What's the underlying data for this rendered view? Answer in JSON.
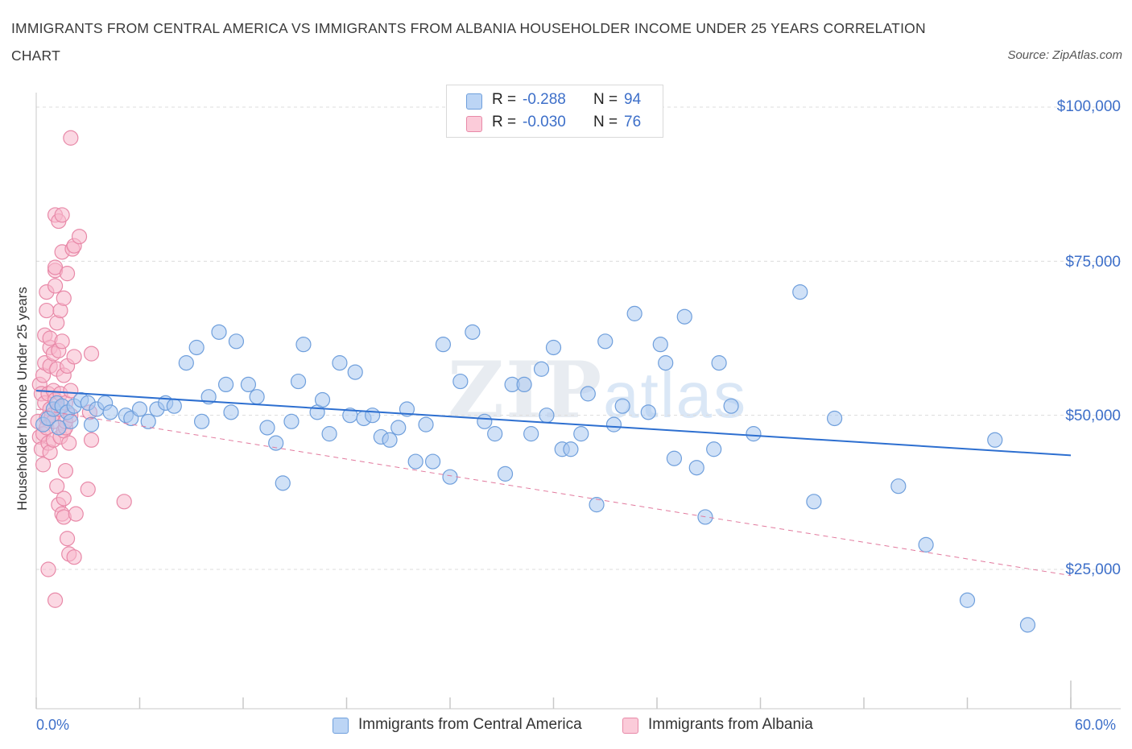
{
  "title": "IMMIGRANTS FROM CENTRAL AMERICA VS IMMIGRANTS FROM ALBANIA HOUSEHOLDER INCOME UNDER 25 YEARS CORRELATION CHART",
  "source": "Source: ZipAtlas.com",
  "watermark": {
    "zip": "ZIP",
    "atlas": "atlas"
  },
  "legend": {
    "rows": [
      {
        "r_label": "R =",
        "r_value": "-0.288",
        "n_label": "N =",
        "n_value": "94",
        "color": "#a9c8f0"
      },
      {
        "r_label": "R =",
        "r_value": "-0.030",
        "n_label": "N =",
        "n_value": "76",
        "color": "#f7b8cc"
      }
    ]
  },
  "bottom_legend": [
    {
      "label": "Immigrants from Central America",
      "color": "#a9c8f0"
    },
    {
      "label": "Immigrants from Albania",
      "color": "#f7b8cc"
    }
  ],
  "colors": {
    "blue_fill": "#a9c8f0",
    "blue_stroke": "#6f9fdc",
    "blue_line": "#2d6fd0",
    "pink_fill": "#f7b8cc",
    "pink_stroke": "#e889a8",
    "pink_line": "#e27a9e",
    "grid": "#dcdcdc",
    "axis_text": "#3d6fc9"
  },
  "chart_data": {
    "type": "scatter",
    "xlabel": "",
    "ylabel": "Householder Income Under 25 years",
    "xlim": [
      0,
      60
    ],
    "ylim": [
      0,
      105000
    ],
    "x_tick_labels": [
      "0.0%",
      "60.0%"
    ],
    "y_ticks": [
      25000,
      50000,
      75000,
      100000
    ],
    "y_tick_labels": [
      "$25,000",
      "$50,000",
      "$75,000",
      "$100,000"
    ],
    "grid": true,
    "legend_position": "top-center",
    "series": [
      {
        "name": "Immigrants from Central America",
        "trend": {
          "x": [
            0,
            60
          ],
          "y": [
            54000,
            43500
          ],
          "style": "solid"
        },
        "points": [
          [
            0.4,
            48500
          ],
          [
            0.7,
            49500
          ],
          [
            1.0,
            51000
          ],
          [
            1.2,
            52000
          ],
          [
            1.5,
            51500
          ],
          [
            1.8,
            50500
          ],
          [
            2.2,
            51500
          ],
          [
            2.6,
            52500
          ],
          [
            3.0,
            52000
          ],
          [
            3.5,
            51000
          ],
          [
            4.0,
            52000
          ],
          [
            4.3,
            50500
          ],
          [
            5.2,
            50000
          ],
          [
            5.5,
            49500
          ],
          [
            6.0,
            51000
          ],
          [
            6.5,
            49000
          ],
          [
            7.0,
            51000
          ],
          [
            7.5,
            52000
          ],
          [
            8.0,
            51500
          ],
          [
            8.7,
            58500
          ],
          [
            9.3,
            61000
          ],
          [
            9.6,
            49000
          ],
          [
            10.0,
            53000
          ],
          [
            10.6,
            63500
          ],
          [
            11.0,
            55000
          ],
          [
            11.3,
            50500
          ],
          [
            11.6,
            62000
          ],
          [
            12.3,
            55000
          ],
          [
            12.8,
            53000
          ],
          [
            13.4,
            48000
          ],
          [
            13.9,
            45500
          ],
          [
            14.3,
            39000
          ],
          [
            14.8,
            49000
          ],
          [
            15.2,
            55500
          ],
          [
            15.5,
            61500
          ],
          [
            16.3,
            50500
          ],
          [
            16.6,
            52500
          ],
          [
            17.0,
            47000
          ],
          [
            17.6,
            58500
          ],
          [
            18.2,
            50000
          ],
          [
            18.5,
            57000
          ],
          [
            19.0,
            49500
          ],
          [
            19.5,
            50000
          ],
          [
            20.0,
            46500
          ],
          [
            20.5,
            46000
          ],
          [
            21.0,
            48000
          ],
          [
            21.5,
            51000
          ],
          [
            22.0,
            42500
          ],
          [
            22.6,
            48500
          ],
          [
            23.0,
            42500
          ],
          [
            23.6,
            61500
          ],
          [
            24.0,
            40000
          ],
          [
            24.6,
            55500
          ],
          [
            25.3,
            63500
          ],
          [
            26.0,
            49000
          ],
          [
            26.6,
            47000
          ],
          [
            27.2,
            40500
          ],
          [
            27.6,
            55000
          ],
          [
            28.3,
            55000
          ],
          [
            28.7,
            47000
          ],
          [
            29.3,
            57500
          ],
          [
            29.6,
            50000
          ],
          [
            30.0,
            61000
          ],
          [
            30.5,
            44500
          ],
          [
            31.0,
            44500
          ],
          [
            31.6,
            47000
          ],
          [
            32.0,
            53500
          ],
          [
            32.5,
            35500
          ],
          [
            33.0,
            62000
          ],
          [
            33.5,
            48500
          ],
          [
            34.0,
            51500
          ],
          [
            34.7,
            66500
          ],
          [
            35.5,
            50500
          ],
          [
            36.2,
            61500
          ],
          [
            36.5,
            58500
          ],
          [
            37.0,
            43000
          ],
          [
            37.6,
            66000
          ],
          [
            38.3,
            41500
          ],
          [
            38.8,
            33500
          ],
          [
            39.3,
            44500
          ],
          [
            39.6,
            58500
          ],
          [
            40.3,
            51500
          ],
          [
            41.6,
            47000
          ],
          [
            44.3,
            70000
          ],
          [
            45.1,
            36000
          ],
          [
            46.3,
            49500
          ],
          [
            50.0,
            38500
          ],
          [
            51.6,
            29000
          ],
          [
            54.0,
            20000
          ],
          [
            55.6,
            46000
          ],
          [
            57.5,
            16000
          ],
          [
            2.0,
            49000
          ],
          [
            3.2,
            48500
          ],
          [
            1.3,
            48000
          ]
        ]
      },
      {
        "name": "Immigrants from Albania",
        "trend": {
          "x": [
            0,
            60
          ],
          "y": [
            51000,
            24000
          ],
          "style": "dashed"
        },
        "points": [
          [
            0.1,
            49000
          ],
          [
            0.2,
            55000
          ],
          [
            0.2,
            46500
          ],
          [
            0.3,
            53500
          ],
          [
            0.3,
            44500
          ],
          [
            0.4,
            47000
          ],
          [
            0.4,
            56500
          ],
          [
            0.4,
            42000
          ],
          [
            0.5,
            52000
          ],
          [
            0.5,
            63000
          ],
          [
            0.5,
            58500
          ],
          [
            0.6,
            49500
          ],
          [
            0.6,
            67000
          ],
          [
            0.6,
            70000
          ],
          [
            0.6,
            48000
          ],
          [
            0.7,
            53500
          ],
          [
            0.7,
            45500
          ],
          [
            0.7,
            25000
          ],
          [
            0.8,
            51000
          ],
          [
            0.8,
            61000
          ],
          [
            0.8,
            62500
          ],
          [
            0.8,
            44000
          ],
          [
            0.8,
            58000
          ],
          [
            0.9,
            50000
          ],
          [
            1.0,
            54000
          ],
          [
            1.0,
            46000
          ],
          [
            1.0,
            60000
          ],
          [
            1.0,
            49000
          ],
          [
            1.1,
            82500
          ],
          [
            1.1,
            52500
          ],
          [
            1.1,
            73500
          ],
          [
            1.1,
            74000
          ],
          [
            1.1,
            71000
          ],
          [
            1.1,
            20000
          ],
          [
            1.2,
            57500
          ],
          [
            1.2,
            65000
          ],
          [
            1.2,
            38500
          ],
          [
            1.3,
            81500
          ],
          [
            1.3,
            60500
          ],
          [
            1.3,
            51000
          ],
          [
            1.3,
            35500
          ],
          [
            1.4,
            53500
          ],
          [
            1.4,
            46500
          ],
          [
            1.4,
            67000
          ],
          [
            1.5,
            82500
          ],
          [
            1.5,
            76500
          ],
          [
            1.5,
            62000
          ],
          [
            1.5,
            34000
          ],
          [
            1.6,
            47500
          ],
          [
            1.6,
            56500
          ],
          [
            1.6,
            69000
          ],
          [
            1.6,
            36500
          ],
          [
            1.6,
            33500
          ],
          [
            1.7,
            52000
          ],
          [
            1.7,
            48000
          ],
          [
            1.7,
            41000
          ],
          [
            1.7,
            49000
          ],
          [
            1.8,
            58000
          ],
          [
            1.8,
            73000
          ],
          [
            1.8,
            30000
          ],
          [
            1.9,
            45500
          ],
          [
            1.9,
            27500
          ],
          [
            2.0,
            95000
          ],
          [
            2.0,
            50000
          ],
          [
            2.0,
            54000
          ],
          [
            2.1,
            77000
          ],
          [
            2.2,
            77500
          ],
          [
            2.2,
            59500
          ],
          [
            2.2,
            27000
          ],
          [
            2.3,
            34000
          ],
          [
            2.5,
            79000
          ],
          [
            3.0,
            38000
          ],
          [
            3.1,
            50500
          ],
          [
            3.2,
            60000
          ],
          [
            3.2,
            46000
          ],
          [
            5.1,
            36000
          ]
        ]
      }
    ]
  }
}
